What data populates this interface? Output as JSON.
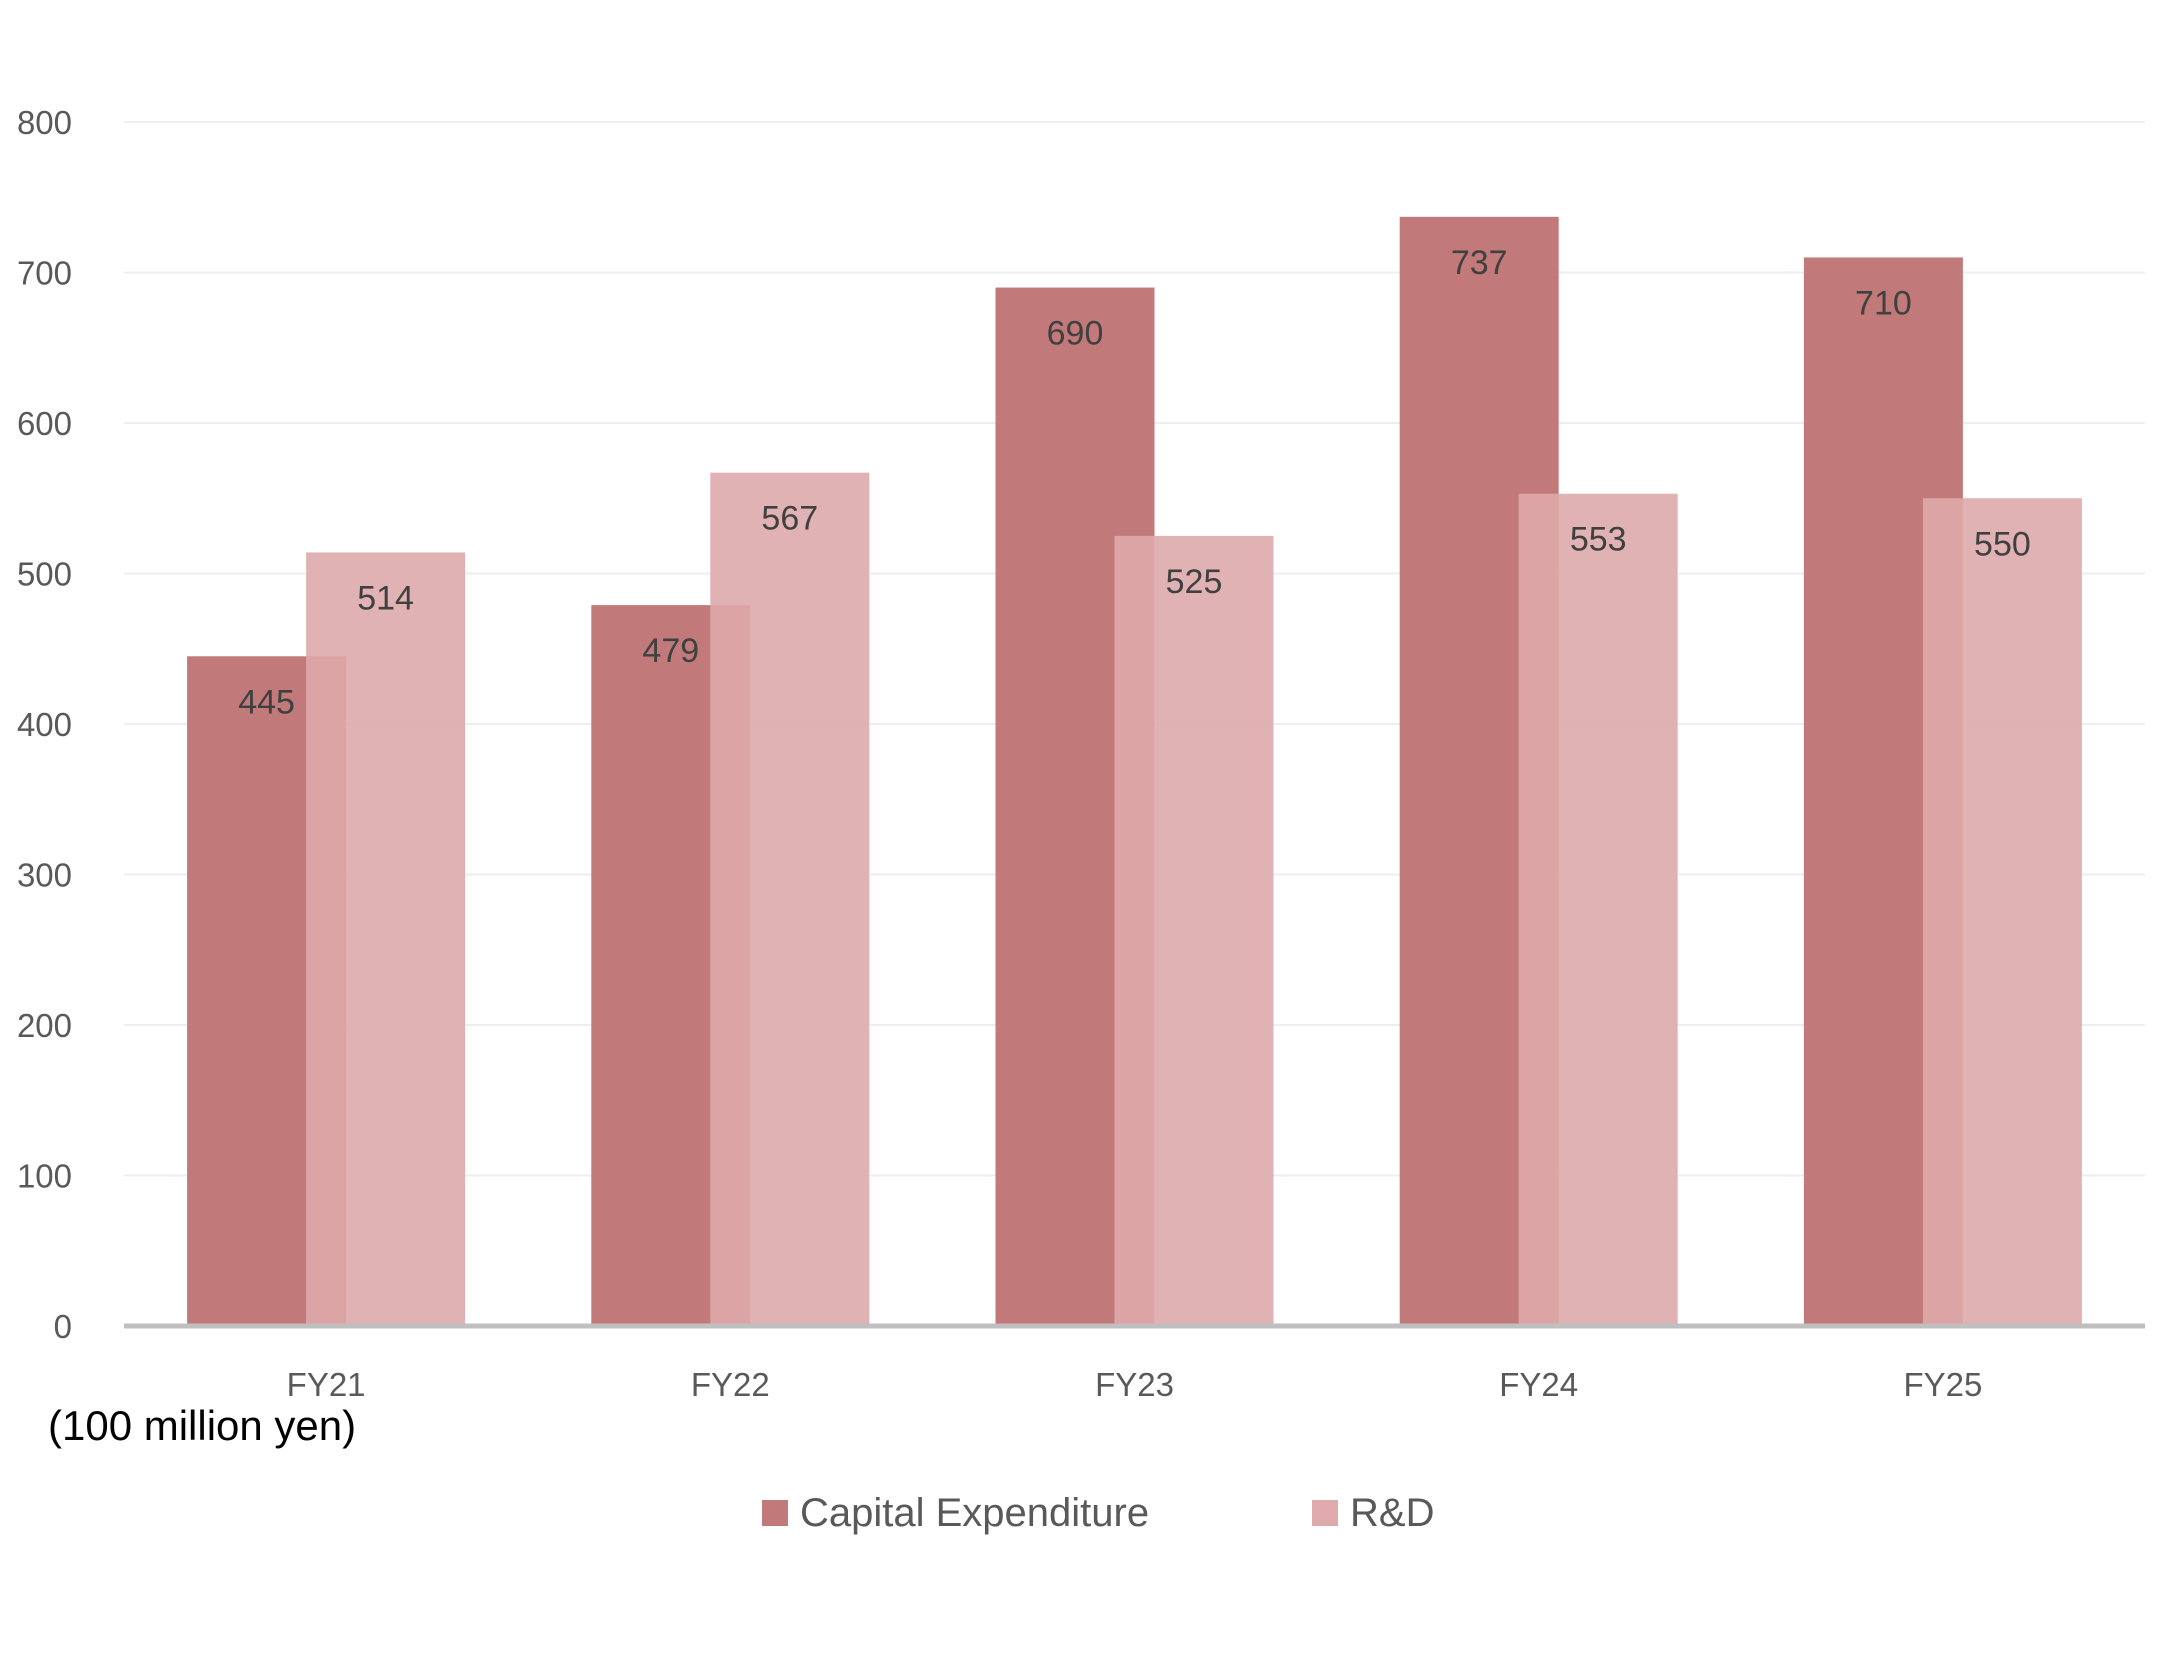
{
  "chart_data": {
    "type": "bar",
    "categories": [
      "FY21",
      "FY22",
      "FY23",
      "FY24",
      "FY25"
    ],
    "series": [
      {
        "name": "Capital Expenditure",
        "values": [
          445,
          479,
          690,
          737,
          710
        ],
        "color": "#c17a79"
      },
      {
        "name": "R&D",
        "values": [
          514,
          567,
          525,
          553,
          550
        ],
        "color": "#deaaab"
      }
    ],
    "title": "",
    "xlabel": "",
    "ylabel": "",
    "unit_label": "(100 million yen)",
    "ylim": [
      0,
      800
    ],
    "yticks": [
      0,
      100,
      200,
      300,
      400,
      500,
      600,
      700,
      800
    ],
    "grid": true,
    "legend_position": "bottom",
    "gridline_color": "#eeeeee",
    "axis_color": "#bfbfbf"
  }
}
